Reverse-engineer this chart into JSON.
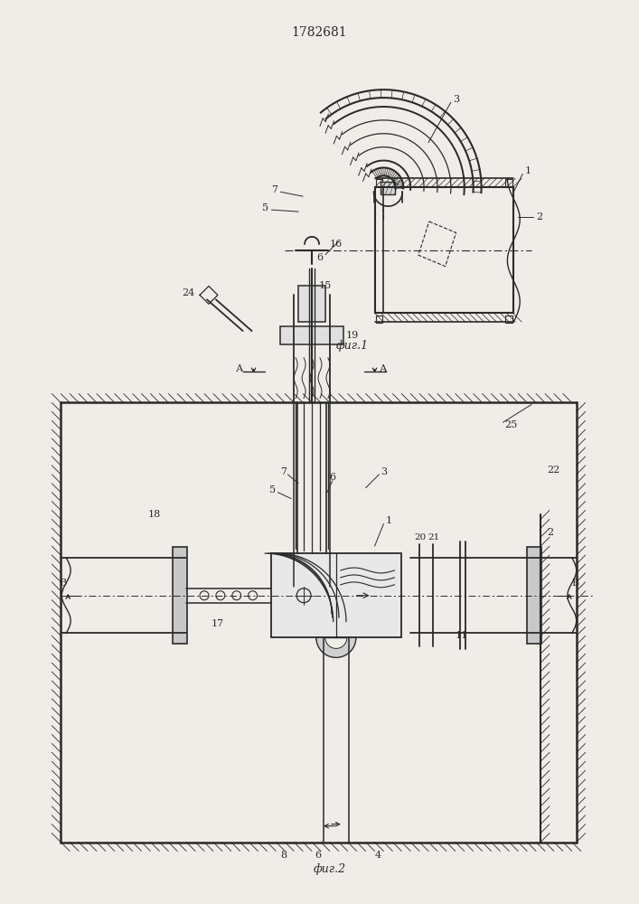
{
  "title": "1782681",
  "fig1_label": "фиг.1",
  "fig2_label": "фиг.2",
  "bg_color": "#f0ede8",
  "line_color": "#2a2a2a"
}
